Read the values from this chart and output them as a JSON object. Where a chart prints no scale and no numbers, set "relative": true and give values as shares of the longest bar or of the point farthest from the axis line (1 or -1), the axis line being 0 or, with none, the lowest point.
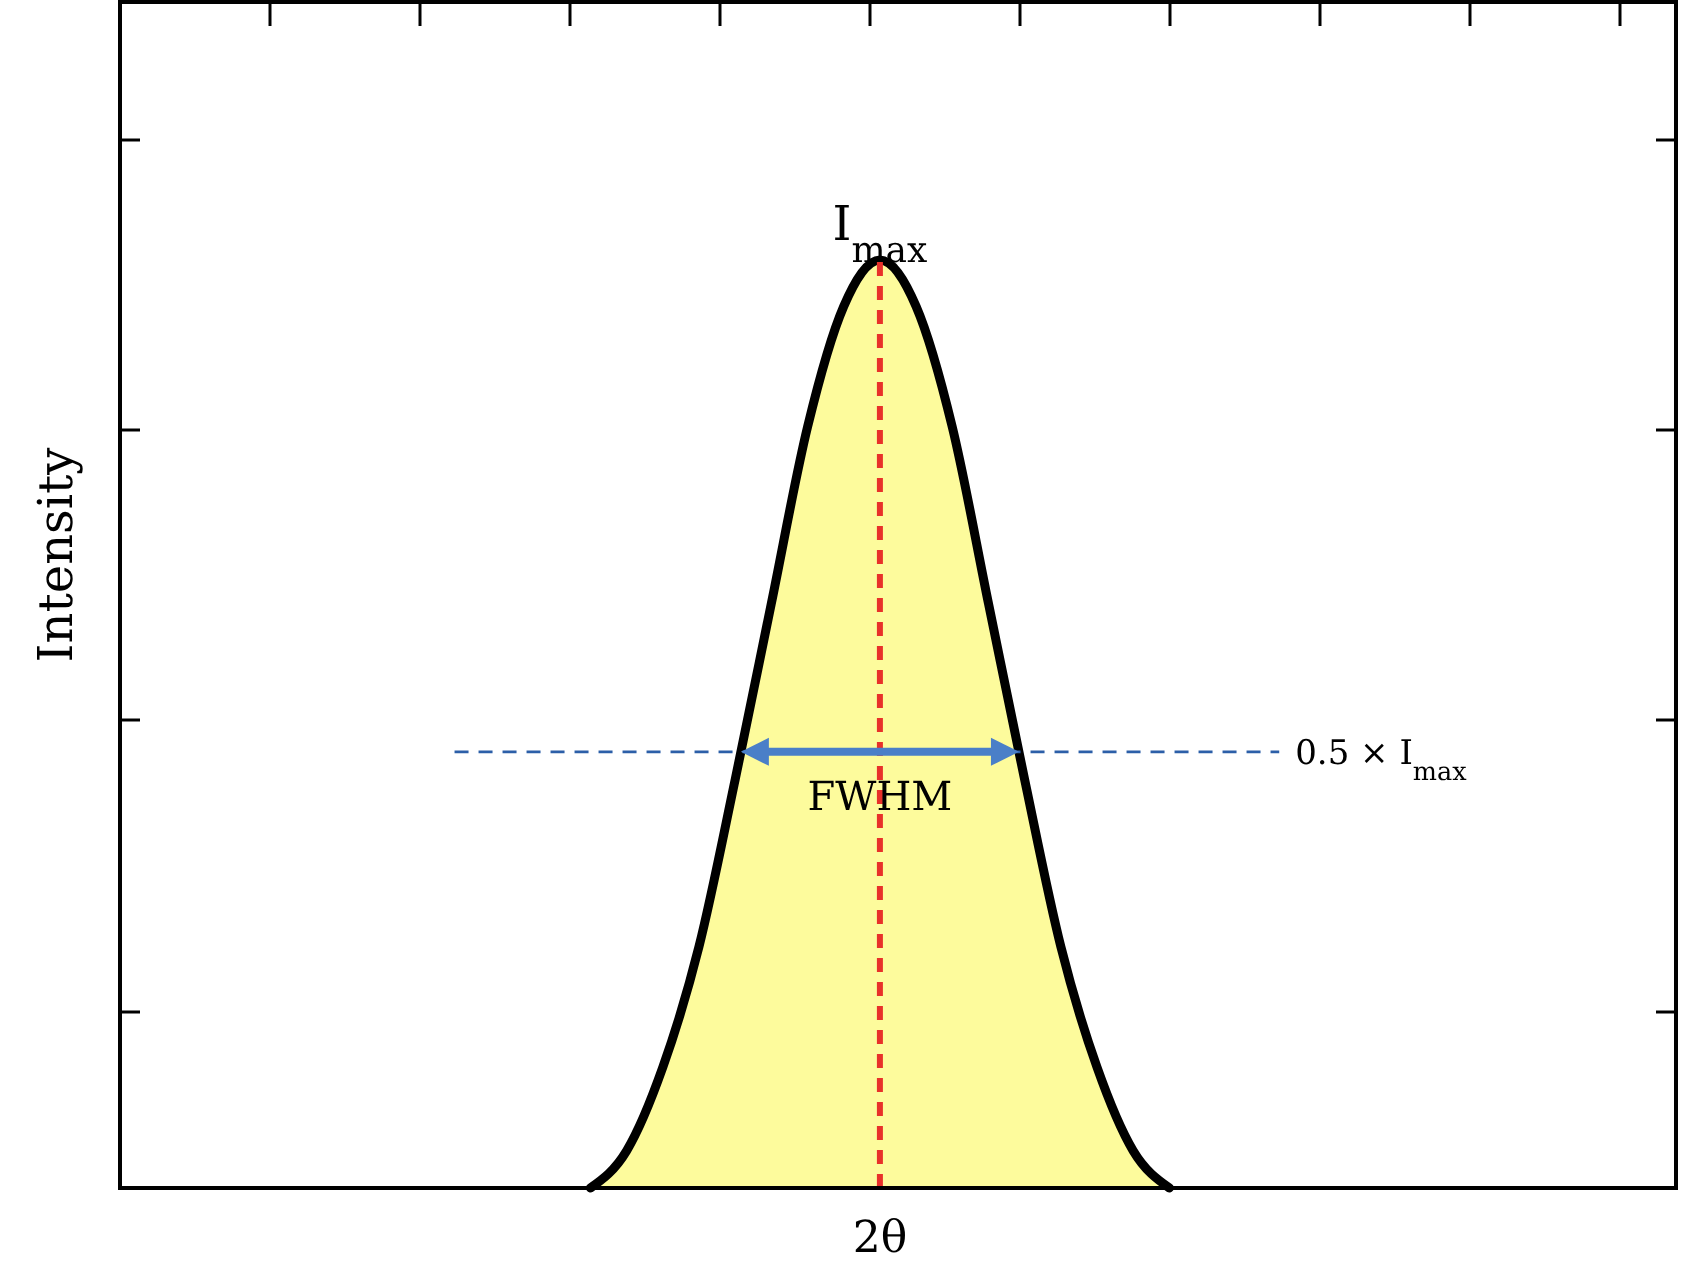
{
  "chart_data": {
    "type": "area",
    "relative": true,
    "xlabel": "2θ",
    "ylabel": "Intensity",
    "categories": [
      null,
      null,
      null,
      null,
      null,
      null,
      null,
      null,
      null,
      null,
      null,
      null,
      null,
      null,
      null,
      null,
      null,
      null,
      null,
      null,
      null,
      null,
      null,
      null,
      null,
      null,
      null,
      null,
      null,
      null,
      null,
      null,
      null,
      null,
      null,
      null,
      null,
      null,
      null,
      null,
      null,
      null,
      null,
      null
    ],
    "series": [
      {
        "color": "#fdfb9c",
        "values": [
          null,
          null,
          null,
          null,
          null,
          null,
          null,
          null,
          null,
          null,
          null,
          null,
          null,
          0,
          0.04,
          0.13,
          0.26,
          0.44,
          0.63,
          0.82,
          0.95,
          1,
          0.95,
          0.82,
          0.63,
          0.44,
          0.26,
          0.13,
          0.04,
          0,
          null,
          null,
          null,
          null,
          null,
          null,
          null,
          null,
          null,
          null,
          null,
          null,
          null,
          null
        ]
      }
    ],
    "ref_lines": [
      {
        "axis": "y",
        "value": 0.47,
        "label": "0.5 × I$_{max}$",
        "color": "#2c5fa8",
        "line_style": "dashed"
      }
    ],
    "annotations": [
      "I$_{max}$",
      "FWHM"
    ]
  }
}
